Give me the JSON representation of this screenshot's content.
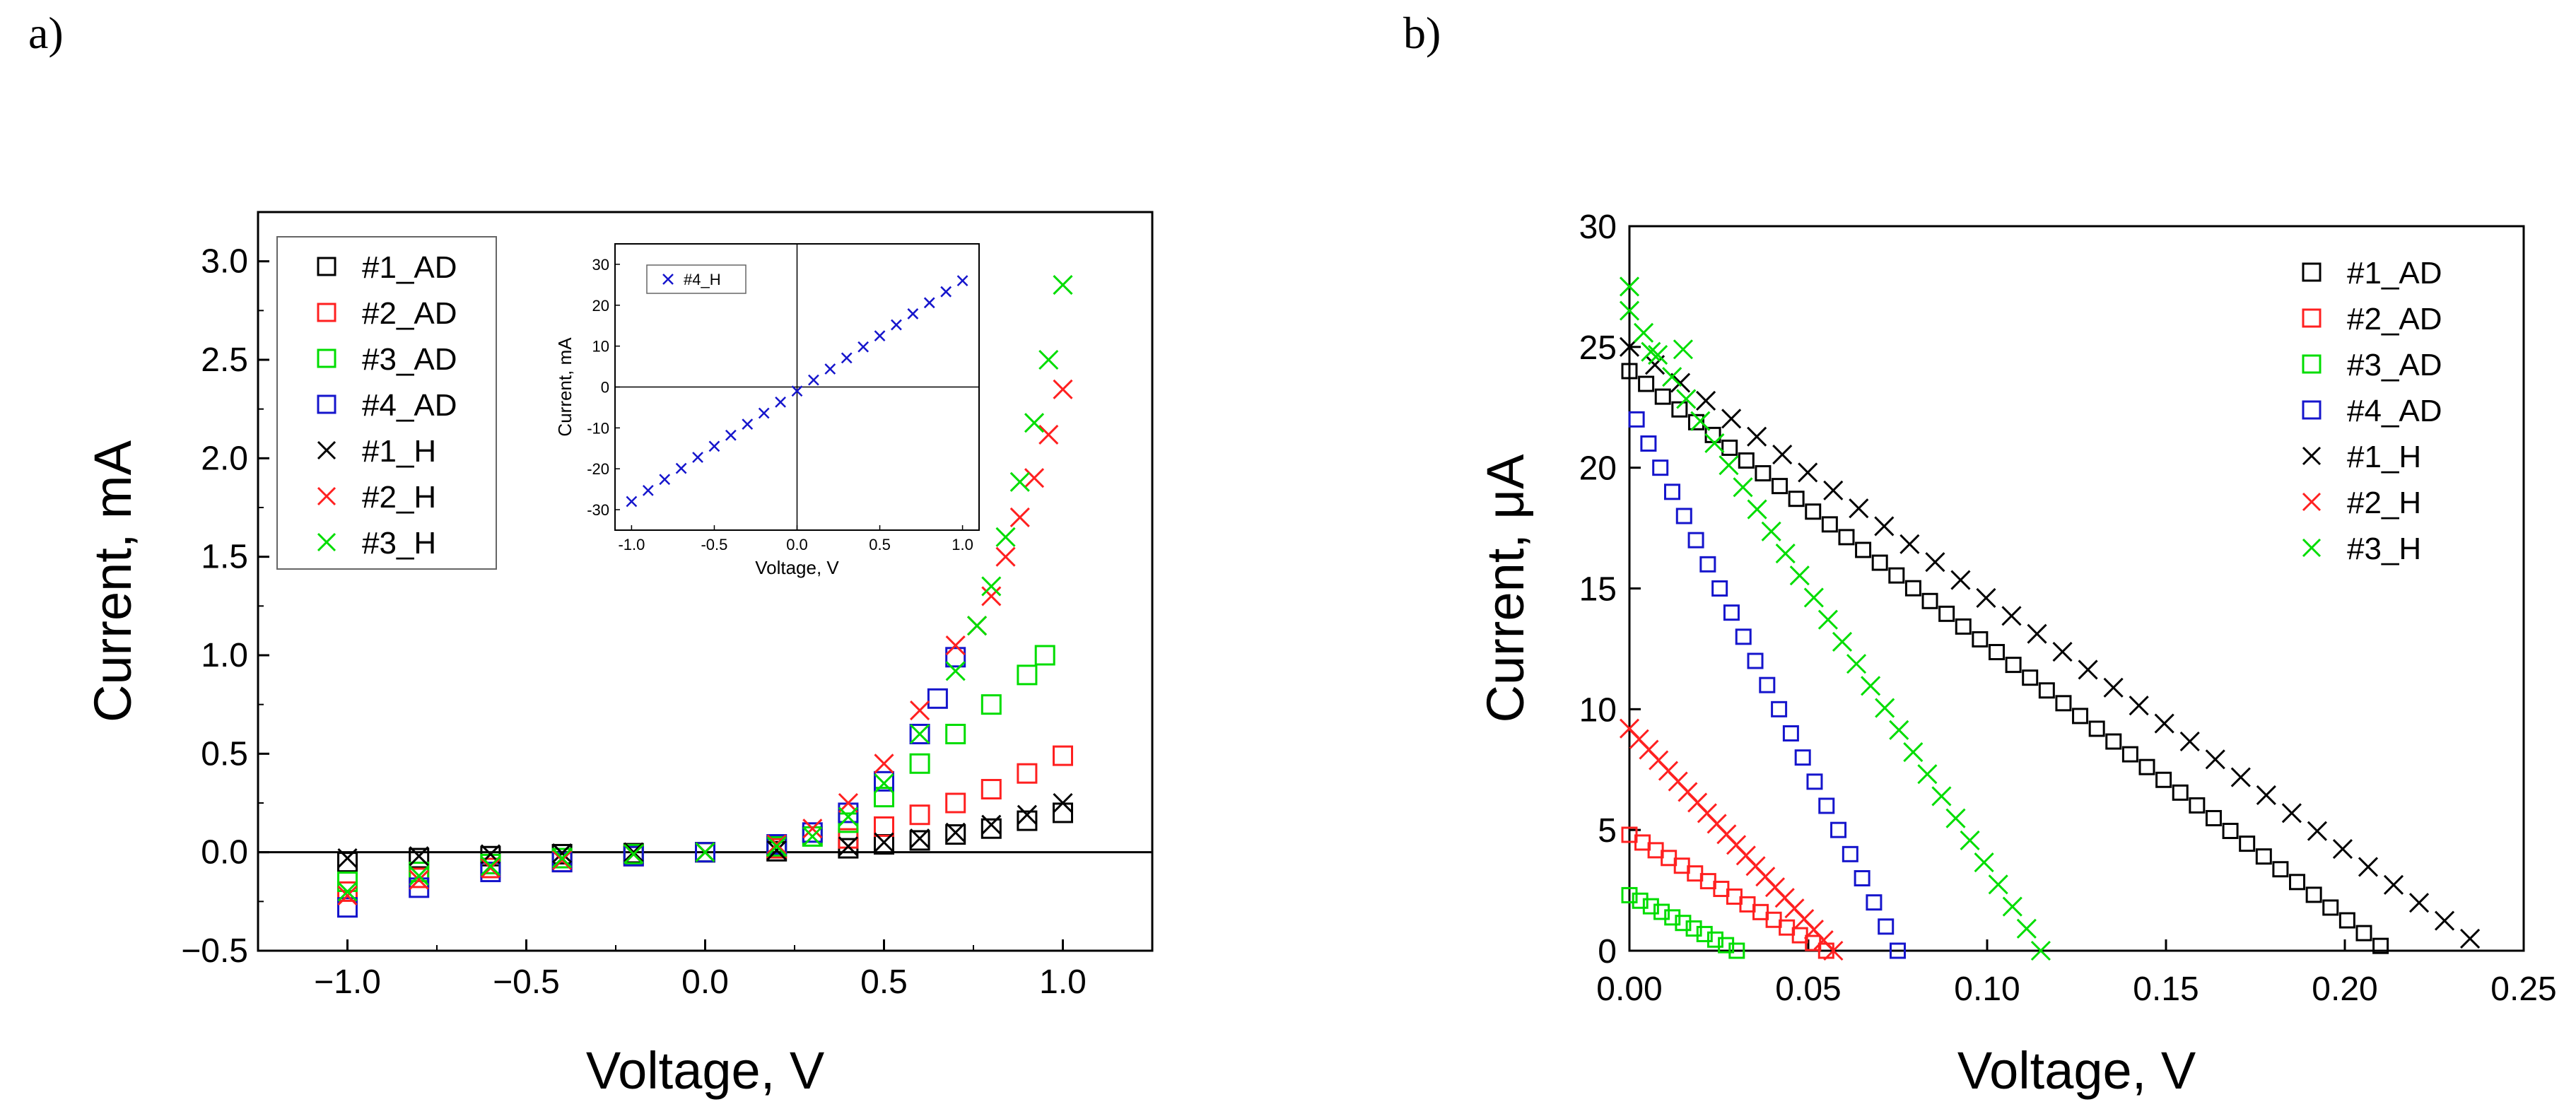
{
  "panels": {
    "a": "a)",
    "b": "b)"
  },
  "colors": {
    "#1": "#000000",
    "#2": "#ff2020",
    "#3": "#00dd00",
    "#4": "#1515cc"
  },
  "chart_data": [
    {
      "id": "a",
      "type": "scatter",
      "title": "",
      "xlabel": "Voltage, V",
      "ylabel": "Current, mA",
      "xlim": [
        -1.25,
        1.25
      ],
      "ylim": [
        -0.5,
        3.25
      ],
      "xticks": [
        -1.0,
        -0.5,
        0.0,
        0.5,
        1.0
      ],
      "xtick_labels": [
        "−1.0",
        "−0.5",
        "0.0",
        "0.5",
        "1.0"
      ],
      "yticks": [
        -0.5,
        0.0,
        0.5,
        1.0,
        1.5,
        2.0,
        2.5,
        3.0
      ],
      "ytick_labels": [
        "−0.5",
        "0.0",
        "0.5",
        "1.0",
        "1.5",
        "2.0",
        "2.5",
        "3.0"
      ],
      "legend_position": "top-left",
      "series": [
        {
          "name": "#1_AD",
          "marker": "square",
          "color": "#000000",
          "x": [
            -1.0,
            -0.8,
            -0.6,
            -0.4,
            -0.2,
            0.0,
            0.2,
            0.4,
            0.5,
            0.6,
            0.7,
            0.8,
            0.9,
            1.0
          ],
          "y": [
            -0.05,
            -0.03,
            -0.02,
            -0.01,
            -0.005,
            0.0,
            0.005,
            0.02,
            0.04,
            0.06,
            0.09,
            0.12,
            0.16,
            0.2
          ]
        },
        {
          "name": "#2_AD",
          "marker": "square",
          "color": "#ff2020",
          "x": [
            -1.0,
            -0.8,
            -0.6,
            -0.4,
            -0.2,
            0.0,
            0.2,
            0.4,
            0.5,
            0.6,
            0.7,
            0.8,
            0.9,
            1.0
          ],
          "y": [
            -0.2,
            -0.13,
            -0.08,
            -0.05,
            -0.02,
            0.0,
            0.02,
            0.07,
            0.13,
            0.19,
            0.25,
            0.32,
            0.4,
            0.49
          ]
        },
        {
          "name": "#3_AD",
          "marker": "square",
          "color": "#00dd00",
          "x": [
            -1.0,
            -0.8,
            -0.6,
            -0.4,
            -0.2,
            0.0,
            0.2,
            0.3,
            0.4,
            0.5,
            0.6,
            0.7,
            0.8,
            0.9,
            0.95
          ],
          "y": [
            -0.15,
            -0.1,
            -0.06,
            -0.03,
            -0.01,
            0.0,
            0.03,
            0.08,
            0.15,
            0.28,
            0.45,
            0.6,
            0.75,
            0.9,
            1.0
          ]
        },
        {
          "name": "#4_AD",
          "marker": "square",
          "color": "#1515cc",
          "x": [
            -1.0,
            -0.8,
            -0.6,
            -0.4,
            -0.2,
            0.0,
            0.2,
            0.3,
            0.4,
            0.5,
            0.6,
            0.65,
            0.7
          ],
          "y": [
            -0.28,
            -0.18,
            -0.1,
            -0.05,
            -0.02,
            0.0,
            0.04,
            0.1,
            0.2,
            0.36,
            0.6,
            0.78,
            0.99
          ]
        },
        {
          "name": "#1_H",
          "marker": "x",
          "color": "#000000",
          "x": [
            -1.0,
            -0.8,
            -0.6,
            -0.4,
            -0.2,
            0.0,
            0.2,
            0.4,
            0.5,
            0.6,
            0.7,
            0.8,
            0.9,
            1.0
          ],
          "y": [
            -0.03,
            -0.02,
            -0.01,
            -0.005,
            0.0,
            0.0,
            0.01,
            0.03,
            0.05,
            0.07,
            0.1,
            0.14,
            0.19,
            0.25
          ]
        },
        {
          "name": "#2_H",
          "marker": "x",
          "color": "#ff2020",
          "x": [
            -1.0,
            -0.8,
            -0.6,
            -0.4,
            -0.2,
            0.0,
            0.2,
            0.3,
            0.4,
            0.5,
            0.6,
            0.7,
            0.76,
            0.8,
            0.84,
            0.88,
            0.92,
            0.96,
            1.0
          ],
          "y": [
            -0.22,
            -0.14,
            -0.08,
            -0.04,
            -0.01,
            0.0,
            0.04,
            0.12,
            0.25,
            0.45,
            0.72,
            1.05,
            1.15,
            1.3,
            1.5,
            1.7,
            1.9,
            2.12,
            2.35
          ]
        },
        {
          "name": "#3_H",
          "marker": "x",
          "color": "#00dd00",
          "x": [
            -1.0,
            -0.8,
            -0.6,
            -0.4,
            -0.2,
            0.0,
            0.2,
            0.3,
            0.4,
            0.5,
            0.6,
            0.7,
            0.76,
            0.8,
            0.84,
            0.88,
            0.92,
            0.96,
            1.0
          ],
          "y": [
            -0.2,
            -0.12,
            -0.07,
            -0.03,
            -0.01,
            0.0,
            0.03,
            0.08,
            0.18,
            0.35,
            0.6,
            0.92,
            1.15,
            1.35,
            1.6,
            1.88,
            2.18,
            2.5,
            2.88
          ]
        }
      ],
      "inset": {
        "type": "scatter",
        "xlabel": "Voltage, V",
        "ylabel": "Current, mA",
        "xlim": [
          -1.1,
          1.1
        ],
        "ylim": [
          -35,
          35
        ],
        "xticks": [
          -1.0,
          -0.5,
          0.0,
          0.5,
          1.0
        ],
        "xtick_labels": [
          "-1.0",
          "-0.5",
          "0.0",
          "0.5",
          "1.0"
        ],
        "yticks": [
          -30,
          -20,
          -10,
          0,
          10,
          20,
          30
        ],
        "ytick_labels": [
          "-30",
          "-20",
          "-10",
          "0",
          "10",
          "20",
          "30"
        ],
        "series": [
          {
            "name": "#4_H",
            "marker": "x",
            "color": "#1515cc",
            "x": [
              -1.0,
              -0.9,
              -0.8,
              -0.7,
              -0.6,
              -0.5,
              -0.4,
              -0.3,
              -0.2,
              -0.1,
              0.0,
              0.1,
              0.2,
              0.3,
              0.4,
              0.5,
              0.6,
              0.7,
              0.8,
              0.9,
              1.0
            ],
            "y": [
              -28,
              -25.3,
              -22.6,
              -19.9,
              -17.2,
              -14.5,
              -11.8,
              -9.1,
              -6.4,
              -3.7,
              -1.0,
              1.7,
              4.4,
              7.1,
              9.8,
              12.5,
              15.2,
              17.9,
              20.6,
              23.3,
              26.0
            ]
          }
        ]
      }
    },
    {
      "id": "b",
      "type": "scatter",
      "title": "",
      "xlabel": "Voltage, V",
      "ylabel": "Current, μA",
      "xlim": [
        0.0,
        0.25
      ],
      "ylim": [
        0,
        30
      ],
      "xticks": [
        0.0,
        0.05,
        0.1,
        0.15,
        0.2,
        0.25
      ],
      "xtick_labels": [
        "0.00",
        "0.05",
        "0.10",
        "0.15",
        "0.20",
        "0.25"
      ],
      "yticks": [
        0,
        5,
        10,
        15,
        20,
        25,
        30
      ],
      "ytick_labels": [
        "0",
        "5",
        "10",
        "15",
        "20",
        "25",
        "30"
      ],
      "legend_position": "top-right",
      "series": [
        {
          "name": "#1_AD",
          "marker": "square",
          "color": "#000000",
          "line": {
            "x0": 0.0,
            "y0": 24.0,
            "x1": 0.21,
            "y1": 0.2,
            "n": 46
          }
        },
        {
          "name": "#2_AD",
          "marker": "square",
          "color": "#ff2020",
          "line": {
            "x0": 0.0,
            "y0": 4.8,
            "x1": 0.055,
            "y1": 0.0,
            "n": 16
          }
        },
        {
          "name": "#3_AD",
          "marker": "square",
          "color": "#00dd00",
          "line": {
            "x0": 0.0,
            "y0": 2.3,
            "x1": 0.03,
            "y1": 0.0,
            "n": 11
          }
        },
        {
          "name": "#4_AD",
          "marker": "square",
          "color": "#1515cc",
          "line": {
            "x0": 0.002,
            "y0": 22.0,
            "x1": 0.075,
            "y1": 0.0,
            "n": 23
          }
        },
        {
          "name": "#1_H",
          "marker": "x",
          "color": "#000000",
          "line": {
            "x0": 0.0,
            "y0": 25.0,
            "x1": 0.235,
            "y1": 0.5,
            "n": 34
          }
        },
        {
          "name": "#2_H",
          "marker": "x",
          "color": "#ff2020",
          "line": {
            "x0": 0.0,
            "y0": 9.2,
            "x1": 0.057,
            "y1": 0.0,
            "n": 22
          }
        },
        {
          "name": "#3_H",
          "marker": "x",
          "color": "#00dd00",
          "line": {
            "x0": 0.0,
            "y0": 26.5,
            "x1": 0.115,
            "y1": 0.0,
            "n": 30
          },
          "extra": [
            {
              "x": 0.0,
              "y": 27.5
            },
            {
              "x": 0.006,
              "y": 24.8
            },
            {
              "x": 0.015,
              "y": 24.9
            }
          ]
        }
      ]
    }
  ]
}
